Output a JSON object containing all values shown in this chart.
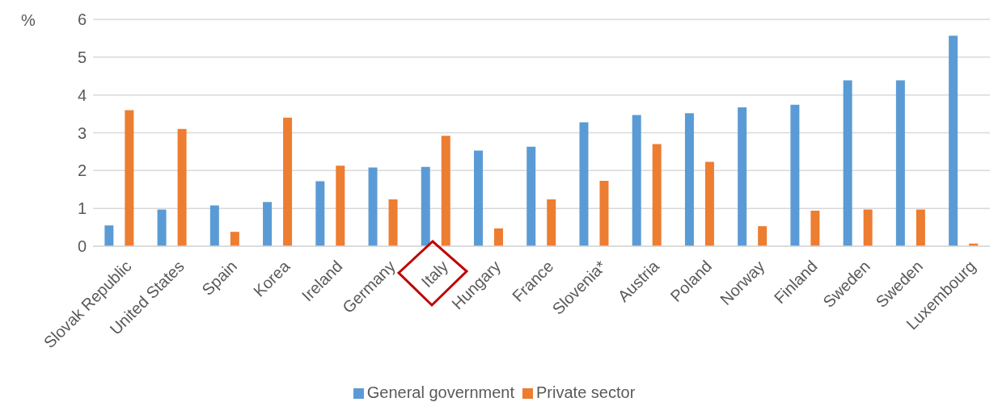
{
  "chart_data": {
    "type": "bar",
    "ylabel": "%",
    "categories": [
      "Slovak Republic",
      "United States",
      "Spain",
      "Korea",
      "Ireland",
      "Germany",
      "Italy",
      "Hungary",
      "France",
      "Slovenia*",
      "Austria",
      "Poland",
      "Norway",
      "Finland",
      "Sweden",
      "Sweden",
      "Luxembourg"
    ],
    "series": [
      {
        "name": "General government",
        "color": "#5b9bd5",
        "values": [
          0.55,
          0.97,
          1.08,
          1.17,
          1.72,
          2.08,
          2.1,
          2.53,
          2.63,
          3.28,
          3.47,
          3.52,
          3.67,
          3.74,
          4.39,
          4.39,
          5.57
        ]
      },
      {
        "name": "Private sector",
        "color": "#ed7d31",
        "values": [
          3.6,
          3.1,
          0.38,
          3.4,
          2.13,
          1.24,
          2.92,
          0.47,
          1.24,
          1.73,
          2.7,
          2.23,
          0.53,
          0.94,
          0.97,
          0.97,
          0.07
        ]
      }
    ],
    "ylim": [
      0,
      6
    ],
    "yticks": [
      0,
      1,
      2,
      3,
      4,
      5,
      6
    ],
    "grid": "y",
    "legend": "bottom"
  }
}
